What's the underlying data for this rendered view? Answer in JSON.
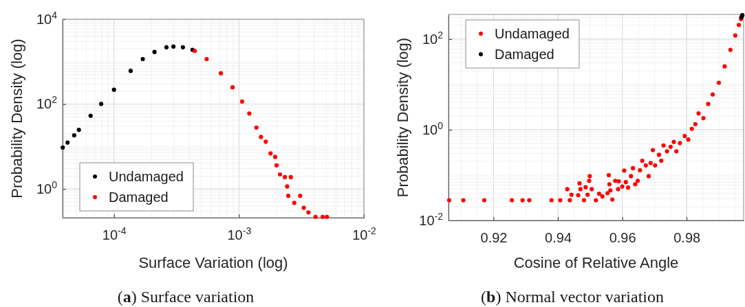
{
  "chart_data": [
    {
      "type": "scatter",
      "title": "(a) Surface variation",
      "xlabel": "Surface Variation (log)",
      "ylabel": "Probability Density (log)",
      "log": "xy",
      "grid": true,
      "legend": "bottom left",
      "marker": "circle",
      "xlim": [
        3.88e-05,
        0.01
      ],
      "ylim": [
        0.21,
        10000
      ],
      "xticks": [
        {
          "value": 0.0001,
          "label": "10$^{-4}$"
        },
        {
          "value": 0.001,
          "label": "10$^{-3}$"
        },
        {
          "value": 0.01,
          "label": "10$^{-2}$"
        }
      ],
      "yticks": [
        {
          "value": 1,
          "label": "10$^{0}$"
        },
        {
          "value": 100,
          "label": "10$^{2}$"
        },
        {
          "value": 10000,
          "label": "10$^{4}$"
        }
      ],
      "series": [
        {
          "name": "Undamaged",
          "color": "#000000",
          "x": [
            3.89e-05,
            4.25e-05,
            4.8e-05,
            5.24e-05,
            6.5e-05,
            7.9e-05,
            0.0001,
            0.000136,
            0.00017,
            0.000211,
            0.000263,
            0.000299,
            0.000356,
            0.000425
          ],
          "values": [
            9.5,
            12.4,
            18.4,
            24.7,
            53,
            101,
            218,
            607,
            1150,
            1690,
            2180,
            2270,
            2180,
            1900
          ]
        },
        {
          "name": "Damaged",
          "color": "#ff0000",
          "x": [
            0.000443,
            0.000552,
            0.000717,
            0.00089,
            0.00106,
            0.00121,
            0.00138,
            0.0015,
            0.00164,
            0.00179,
            0.00195,
            0.002,
            0.00213,
            0.00233,
            0.00243,
            0.00248,
            0.0026,
            0.00277,
            0.00309,
            0.0033,
            0.0036,
            0.0041,
            0.00468,
            0.00506
          ],
          "values": [
            1800,
            1150,
            533,
            248,
            115,
            60,
            28,
            16.8,
            13,
            6.9,
            5.7,
            3.6,
            2.2,
            1.9,
            1.15,
            0.69,
            1.9,
            0.47,
            0.69,
            0.36,
            0.28,
            0.22,
            0.22,
            0.22
          ]
        }
      ]
    },
    {
      "type": "scatter",
      "title": "(b) Normal vector variation",
      "xlabel": "Cosine of Relative Angle",
      "ylabel": "Probability Density (log)",
      "log": "y",
      "grid": true,
      "legend": "top left",
      "marker": "circle",
      "xlim": [
        0.906,
        0.9977
      ],
      "ylim": [
        0.01,
        350
      ],
      "xticks": [
        0.92,
        0.94,
        0.96,
        0.98
      ],
      "yticks": [
        {
          "value": 0.01,
          "label": "10$^{-2}$"
        },
        {
          "value": 1,
          "label": "10$^{0}$"
        },
        {
          "value": 100,
          "label": "10$^{2}$"
        }
      ],
      "series": [
        {
          "name": "Undamaged",
          "color": "#ff0000",
          "x": [
            0.9062,
            0.9106,
            0.9171,
            0.9257,
            0.929,
            0.9311,
            0.938,
            0.9407,
            0.9429,
            0.9437,
            0.9442,
            0.9463,
            0.9467,
            0.947,
            0.9481,
            0.9486,
            0.9492,
            0.9497,
            0.9499,
            0.9505,
            0.9518,
            0.9528,
            0.9538,
            0.9554,
            0.9558,
            0.956,
            0.9563,
            0.9569,
            0.9578,
            0.9587,
            0.9589,
            0.96,
            0.9606,
            0.9611,
            0.9618,
            0.9627,
            0.9633,
            0.964,
            0.9648,
            0.9655,
            0.9662,
            0.9673,
            0.9682,
            0.9688,
            0.9695,
            0.9702,
            0.9714,
            0.9721,
            0.9728,
            0.9739,
            0.975,
            0.976,
            0.9768,
            0.9779,
            0.9794,
            0.9805,
            0.9816,
            0.9827,
            0.9837,
            0.9852,
            0.9867,
            0.9881,
            0.99,
            0.9918,
            0.9936,
            0.9951,
            0.9962,
            0.9969
          ],
          "values": [
            0.028,
            0.028,
            0.028,
            0.028,
            0.028,
            0.028,
            0.028,
            0.028,
            0.049,
            0.028,
            0.037,
            0.036,
            0.066,
            0.049,
            0.028,
            0.054,
            0.037,
            0.075,
            0.095,
            0.049,
            0.028,
            0.039,
            0.034,
            0.04,
            0.1,
            0.063,
            0.046,
            0.029,
            0.075,
            0.049,
            0.073,
            0.056,
            0.126,
            0.07,
            0.053,
            0.095,
            0.142,
            0.063,
            0.075,
            0.128,
            0.208,
            0.164,
            0.095,
            0.185,
            0.356,
            0.164,
            0.28,
            0.208,
            0.45,
            0.336,
            0.42,
            0.54,
            0.336,
            0.51,
            0.73,
            0.61,
            1.05,
            1.33,
            2.3,
            1.8,
            3.7,
            6.0,
            10.9,
            25,
            58,
            120,
            205,
            277
          ]
        },
        {
          "name": "Damaged",
          "color": "#000000",
          "x": [
            0.997,
            0.9973
          ],
          "values": [
            305,
            336
          ]
        }
      ]
    }
  ]
}
